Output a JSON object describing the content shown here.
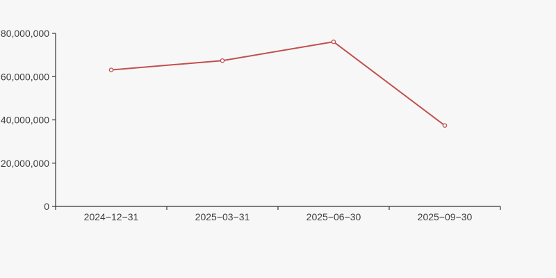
{
  "background_color": "#f7f7f7",
  "chart_data": {
    "type": "line",
    "categories": [
      "2024−12−31",
      "2025−03−31",
      "2025−06−30",
      "2025−09−30"
    ],
    "values": [
      63100000,
      67400000,
      76100000,
      37400000
    ],
    "title": "",
    "xlabel": "",
    "ylabel": "",
    "ylim": [
      0,
      80000000
    ],
    "ytick_labels": [
      "0",
      "20,000,000",
      "40,000,000",
      "60,000,000",
      "80,000,000"
    ],
    "grid": false,
    "legend": "none",
    "line_color": "#c0504d",
    "marker_style": "open-circle",
    "marker_fill": "#f7f7f7",
    "axis_color": "#333333",
    "tick_label_color": "#3d3d3d"
  }
}
